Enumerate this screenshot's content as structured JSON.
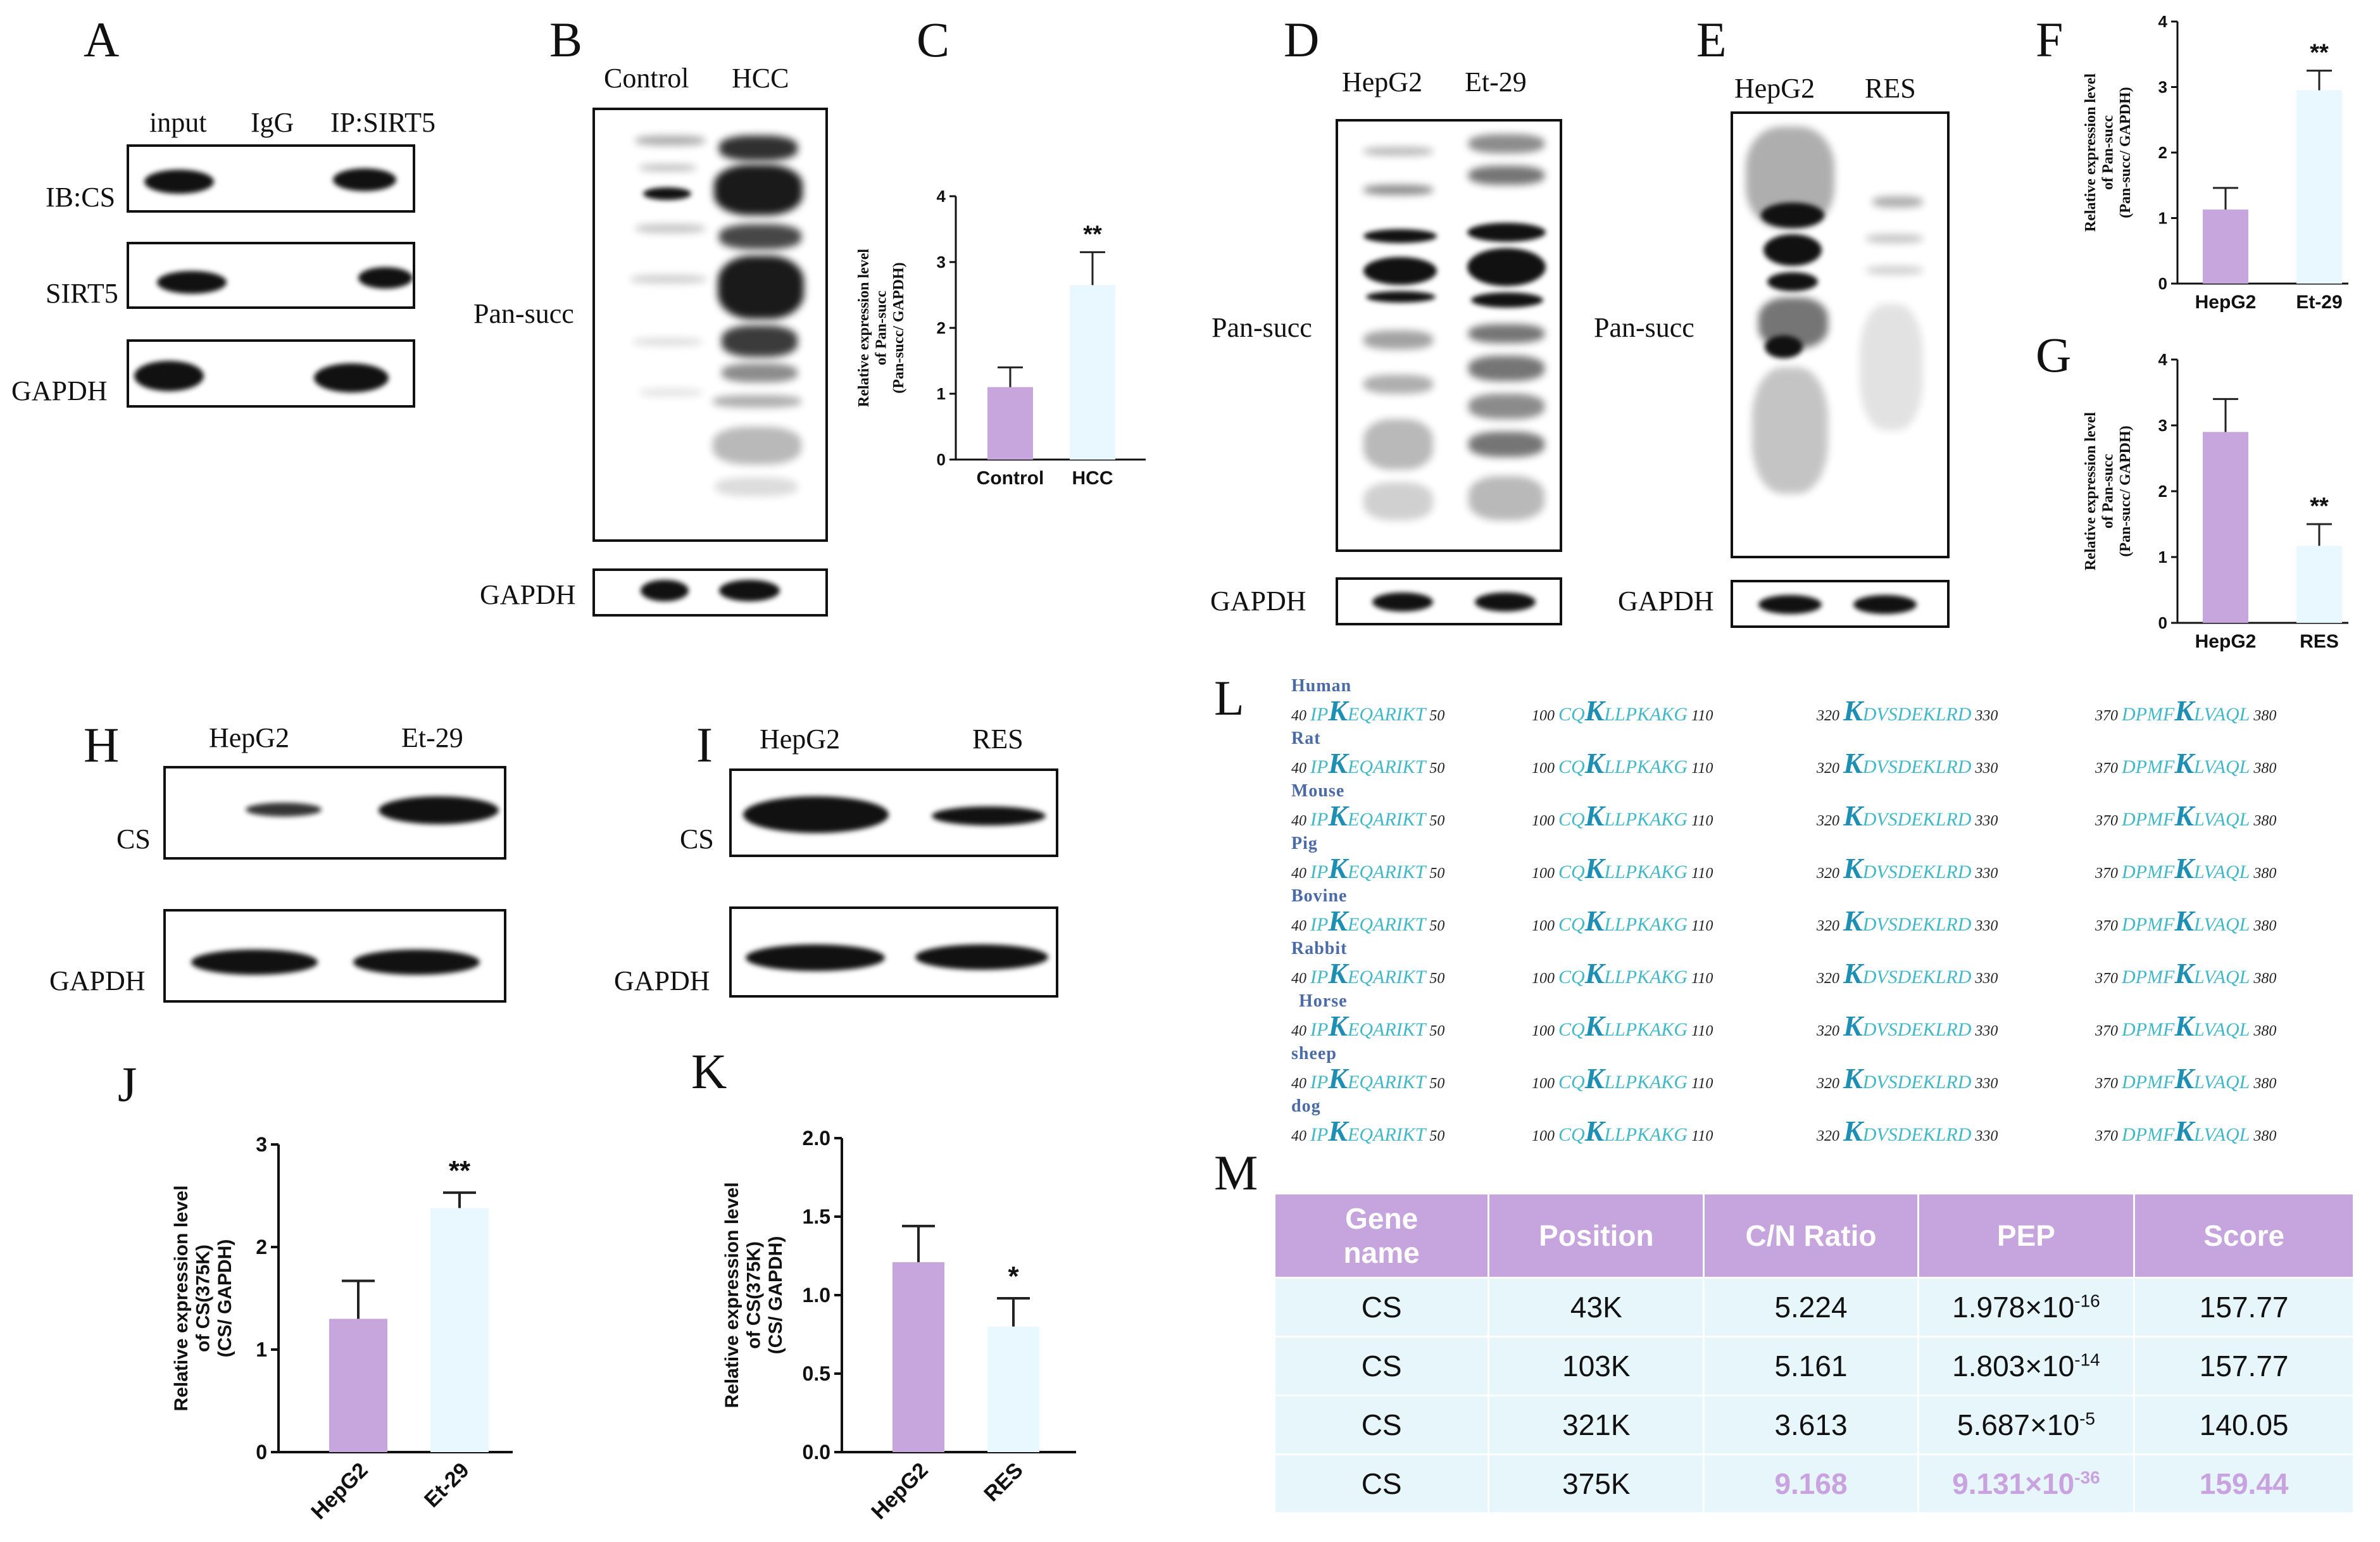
{
  "panels": {
    "A": {
      "letter": "A",
      "lanes": [
        "input",
        "IgG",
        "IP:SIRT5"
      ],
      "rows": [
        "IB:CS",
        "SIRT5",
        "GAPDH"
      ]
    },
    "B": {
      "letter": "B",
      "lanes": [
        "Control",
        "HCC"
      ],
      "blot": "Pan-succ",
      "loading": "GAPDH"
    },
    "D": {
      "letter": "D",
      "lanes": [
        "HepG2",
        "Et-29"
      ],
      "blot": "Pan-succ",
      "loading": "GAPDH"
    },
    "E": {
      "letter": "E",
      "lanes": [
        "HepG2",
        "RES"
      ],
      "blot": "Pan-succ",
      "loading": "GAPDH"
    },
    "H": {
      "letter": "H",
      "lanes": [
        "HepG2",
        "Et-29"
      ],
      "blot": "CS",
      "loading": "GAPDH"
    },
    "I": {
      "letter": "I",
      "lanes": [
        "HepG2",
        "RES"
      ],
      "blot": "CS",
      "loading": "GAPDH"
    },
    "L": {
      "letter": "L"
    },
    "M": {
      "letter": "M"
    }
  },
  "chart_data": [
    {
      "panel": "C",
      "type": "bar",
      "categories": [
        "Control",
        "HCC"
      ],
      "values": [
        1.1,
        2.65
      ],
      "errors": [
        0.3,
        0.5
      ],
      "ylabel": [
        "Relative expression level",
        "of Pan-succ",
        "(Pan-succ/ GAPDH)"
      ],
      "ylim": [
        0,
        4
      ],
      "yticks": [
        "0",
        "1",
        "2",
        "3",
        "4"
      ],
      "significance": [
        "",
        "**"
      ],
      "colors": [
        "#c6a6dd",
        "#e9f8fe"
      ]
    },
    {
      "panel": "F",
      "type": "bar",
      "categories": [
        "HepG2",
        "Et-29"
      ],
      "values": [
        1.13,
        2.95
      ],
      "errors": [
        0.33,
        0.3
      ],
      "ylabel": [
        "Relative expression level",
        "of Pan-succ",
        "(Pan-succ/ GAPDH)"
      ],
      "ylim": [
        0,
        4
      ],
      "yticks": [
        "0",
        "1",
        "2",
        "3",
        "4"
      ],
      "significance": [
        "",
        "**"
      ],
      "colors": [
        "#c6a6dd",
        "#e9f8fe"
      ]
    },
    {
      "panel": "G",
      "type": "bar",
      "categories": [
        "HepG2",
        "RES"
      ],
      "values": [
        2.9,
        1.17
      ],
      "errors": [
        0.5,
        0.33
      ],
      "ylabel": [
        "Relative expression level",
        "of Pan-succ",
        "(Pan-succ/ GAPDH)"
      ],
      "ylim": [
        0,
        4
      ],
      "yticks": [
        "0",
        "1",
        "2",
        "3",
        "4"
      ],
      "significance": [
        "",
        "**"
      ],
      "colors": [
        "#c6a6dd",
        "#e9f8fe"
      ]
    },
    {
      "panel": "J",
      "type": "bar",
      "categories": [
        "HepG2",
        "Et-29"
      ],
      "values": [
        1.3,
        2.38
      ],
      "errors": [
        0.37,
        0.15
      ],
      "ylabel": [
        "Relative expression level",
        "of CS(375K)",
        "(CS/ GAPDH)"
      ],
      "ylim": [
        0,
        3
      ],
      "yticks": [
        "0",
        "1",
        "2",
        "3"
      ],
      "significance": [
        "",
        "**"
      ],
      "colors": [
        "#c6a6dd",
        "#e9f8fe"
      ]
    },
    {
      "panel": "K",
      "type": "bar",
      "categories": [
        "HepG2",
        "RES"
      ],
      "values": [
        1.21,
        0.8
      ],
      "errors": [
        0.23,
        0.18
      ],
      "ylabel": [
        "Relative expression level",
        "of CS(375K)",
        "(CS/ GAPDH)"
      ],
      "ylim": [
        0,
        2.0
      ],
      "yticks": [
        "0.0",
        "0.5",
        "1.0",
        "1.5",
        "2.0"
      ],
      "significance": [
        "",
        "*"
      ],
      "colors": [
        "#c6a6dd",
        "#e9f8fe"
      ]
    }
  ],
  "alignment": {
    "species": [
      "Human",
      "Rat",
      "Mouse",
      "Pig",
      "Bovine",
      "Rabbit",
      "Horse",
      "sheep",
      "dog"
    ],
    "segments": [
      {
        "start": "40",
        "pre": "IP",
        "k": "K",
        "post": "EQARIKT",
        "end": "50"
      },
      {
        "start": "100",
        "pre": "CQ",
        "k": "K",
        "post": "LLPKAKG",
        "end": "110"
      },
      {
        "start": "320",
        "pre": "",
        "k": "K",
        "post": "DVSDEKLRD",
        "end": "330"
      },
      {
        "start": "370",
        "pre": "DPMF",
        "k": "K",
        "post": "LVAQL",
        "end": "380"
      }
    ]
  },
  "table": {
    "headers": [
      "Gene\nname",
      "Position",
      "C/N Ratio",
      "PEP",
      "Score"
    ],
    "rows": [
      {
        "gene": "CS",
        "position": "43K",
        "ratio": "5.224",
        "pep_base": "1.978×10",
        "pep_exp": "-16",
        "score": "157.77",
        "highlight": false
      },
      {
        "gene": "CS",
        "position": "103K",
        "ratio": "5.161",
        "pep_base": "1.803×10",
        "pep_exp": "-14",
        "score": "157.77",
        "highlight": false
      },
      {
        "gene": "CS",
        "position": "321K",
        "ratio": "3.613",
        "pep_base": "5.687×10",
        "pep_exp": "-5",
        "score": "140.05",
        "highlight": false
      },
      {
        "gene": "CS",
        "position": "375K",
        "ratio": "9.168",
        "pep_base": "9.131×10",
        "pep_exp": "-36",
        "score": "159.44",
        "highlight": true
      }
    ]
  }
}
